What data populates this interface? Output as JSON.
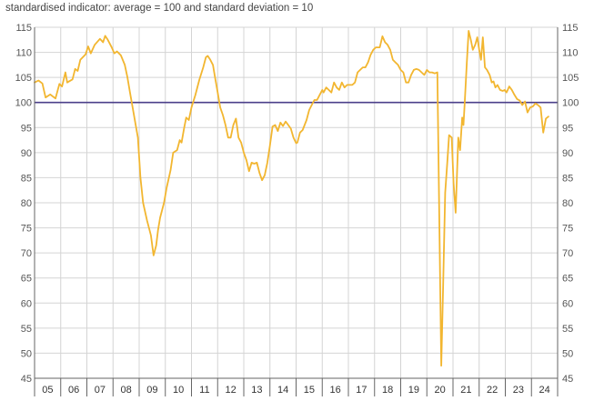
{
  "chart_data": {
    "type": "line",
    "subtitle": "standardised indicator: average = 100 and standard deviation = 10",
    "ylim": [
      45,
      115
    ],
    "yticks": [
      45,
      50,
      55,
      60,
      65,
      70,
      75,
      80,
      85,
      90,
      95,
      100,
      105,
      110,
      115
    ],
    "xticks": [
      "05",
      "06",
      "07",
      "08",
      "09",
      "10",
      "11",
      "12",
      "13",
      "14",
      "15",
      "16",
      "17",
      "18",
      "19",
      "20",
      "21",
      "22",
      "23",
      "24"
    ],
    "x_start_year": 2005,
    "reference_line": 100,
    "grid": true,
    "colors": {
      "line": "#f2b630",
      "reference": "#4b3f8a",
      "grid": "#d4d4d4",
      "axis": "#666666"
    },
    "series": [
      {
        "values": [
          [
            2005.0,
            104.0
          ],
          [
            2005.15,
            104.4
          ],
          [
            2005.3,
            103.8
          ],
          [
            2005.42,
            101.0
          ],
          [
            2005.6,
            101.6
          ],
          [
            2005.8,
            100.8
          ],
          [
            2005.95,
            103.7
          ],
          [
            2006.05,
            103.2
          ],
          [
            2006.18,
            106.0
          ],
          [
            2006.25,
            104.0
          ],
          [
            2006.45,
            104.6
          ],
          [
            2006.55,
            106.7
          ],
          [
            2006.65,
            106.3
          ],
          [
            2006.75,
            108.5
          ],
          [
            2006.95,
            109.6
          ],
          [
            2007.05,
            111.2
          ],
          [
            2007.15,
            109.8
          ],
          [
            2007.3,
            111.5
          ],
          [
            2007.5,
            112.7
          ],
          [
            2007.62,
            112.0
          ],
          [
            2007.7,
            113.3
          ],
          [
            2007.8,
            112.5
          ],
          [
            2007.95,
            111.0
          ],
          [
            2008.05,
            109.8
          ],
          [
            2008.15,
            110.2
          ],
          [
            2008.3,
            109.4
          ],
          [
            2008.45,
            107.5
          ],
          [
            2008.55,
            105.0
          ],
          [
            2008.65,
            102.0
          ],
          [
            2008.75,
            99.0
          ],
          [
            2008.85,
            96.0
          ],
          [
            2008.95,
            93.0
          ],
          [
            2009.05,
            85.0
          ],
          [
            2009.15,
            80.0
          ],
          [
            2009.3,
            76.5
          ],
          [
            2009.45,
            73.5
          ],
          [
            2009.55,
            69.5
          ],
          [
            2009.65,
            71.5
          ],
          [
            2009.72,
            74.5
          ],
          [
            2009.8,
            77.0
          ],
          [
            2009.95,
            80.0
          ],
          [
            2010.05,
            83.0
          ],
          [
            2010.2,
            86.5
          ],
          [
            2010.3,
            90.0
          ],
          [
            2010.45,
            90.5
          ],
          [
            2010.55,
            92.5
          ],
          [
            2010.62,
            92.0
          ],
          [
            2010.72,
            95.0
          ],
          [
            2010.8,
            97.0
          ],
          [
            2010.9,
            96.5
          ],
          [
            2011.0,
            99.0
          ],
          [
            2011.15,
            101.5
          ],
          [
            2011.3,
            104.5
          ],
          [
            2011.45,
            107.0
          ],
          [
            2011.55,
            109.0
          ],
          [
            2011.62,
            109.3
          ],
          [
            2011.72,
            108.5
          ],
          [
            2011.82,
            107.5
          ],
          [
            2011.9,
            105.0
          ],
          [
            2012.0,
            102.0
          ],
          [
            2012.1,
            99.0
          ],
          [
            2012.2,
            97.5
          ],
          [
            2012.3,
            95.5
          ],
          [
            2012.4,
            93.0
          ],
          [
            2012.5,
            93.0
          ],
          [
            2012.6,
            95.5
          ],
          [
            2012.7,
            96.8
          ],
          [
            2012.8,
            93.0
          ],
          [
            2012.9,
            92.0
          ],
          [
            2013.0,
            90.0
          ],
          [
            2013.1,
            88.5
          ],
          [
            2013.2,
            86.3
          ],
          [
            2013.3,
            88.0
          ],
          [
            2013.4,
            87.8
          ],
          [
            2013.5,
            88.0
          ],
          [
            2013.6,
            86.0
          ],
          [
            2013.7,
            84.5
          ],
          [
            2013.8,
            85.5
          ],
          [
            2013.9,
            88.0
          ],
          [
            2014.0,
            91.5
          ],
          [
            2014.1,
            95.2
          ],
          [
            2014.2,
            95.5
          ],
          [
            2014.3,
            94.3
          ],
          [
            2014.4,
            96.0
          ],
          [
            2014.5,
            95.3
          ],
          [
            2014.6,
            96.2
          ],
          [
            2014.7,
            95.5
          ],
          [
            2014.8,
            94.8
          ],
          [
            2014.9,
            93.0
          ],
          [
            2015.0,
            91.9
          ],
          [
            2015.05,
            92.0
          ],
          [
            2015.15,
            94.0
          ],
          [
            2015.25,
            94.5
          ],
          [
            2015.4,
            96.5
          ],
          [
            2015.5,
            98.5
          ],
          [
            2015.6,
            99.5
          ],
          [
            2015.7,
            100.5
          ],
          [
            2015.8,
            100.5
          ],
          [
            2015.9,
            101.5
          ],
          [
            2016.0,
            102.5
          ],
          [
            2016.05,
            102.0
          ],
          [
            2016.15,
            103.0
          ],
          [
            2016.25,
            102.5
          ],
          [
            2016.35,
            102.0
          ],
          [
            2016.45,
            104.0
          ],
          [
            2016.55,
            103.0
          ],
          [
            2016.65,
            102.5
          ],
          [
            2016.75,
            104.0
          ],
          [
            2016.85,
            103.0
          ],
          [
            2016.95,
            103.5
          ],
          [
            2017.05,
            103.5
          ],
          [
            2017.15,
            103.5
          ],
          [
            2017.25,
            104.0
          ],
          [
            2017.35,
            106.0
          ],
          [
            2017.45,
            106.5
          ],
          [
            2017.55,
            107.0
          ],
          [
            2017.65,
            107.0
          ],
          [
            2017.75,
            108.0
          ],
          [
            2017.85,
            109.5
          ],
          [
            2017.95,
            110.5
          ],
          [
            2018.05,
            111.0
          ],
          [
            2018.2,
            111.0
          ],
          [
            2018.3,
            113.2
          ],
          [
            2018.4,
            112.0
          ],
          [
            2018.5,
            111.5
          ],
          [
            2018.6,
            110.5
          ],
          [
            2018.7,
            108.5
          ],
          [
            2018.8,
            108.0
          ],
          [
            2018.9,
            107.5
          ],
          [
            2019.0,
            106.5
          ],
          [
            2019.1,
            106.0
          ],
          [
            2019.2,
            104.0
          ],
          [
            2019.3,
            104.0
          ],
          [
            2019.4,
            105.5
          ],
          [
            2019.5,
            106.5
          ],
          [
            2019.6,
            106.7
          ],
          [
            2019.7,
            106.5
          ],
          [
            2019.8,
            106.0
          ],
          [
            2019.9,
            105.5
          ],
          [
            2020.0,
            106.5
          ],
          [
            2020.1,
            106.0
          ],
          [
            2020.2,
            106.0
          ],
          [
            2020.3,
            105.8
          ],
          [
            2020.4,
            106.0
          ],
          [
            2020.55,
            47.5
          ],
          [
            2020.62,
            63.0
          ],
          [
            2020.7,
            82.0
          ],
          [
            2020.78,
            88.0
          ],
          [
            2020.85,
            93.5
          ],
          [
            2020.95,
            93.0
          ],
          [
            2021.02,
            84.0
          ],
          [
            2021.1,
            78.0
          ],
          [
            2021.2,
            93.0
          ],
          [
            2021.27,
            90.5
          ],
          [
            2021.35,
            97.0
          ],
          [
            2021.4,
            95.5
          ],
          [
            2021.45,
            100.0
          ],
          [
            2021.53,
            108.0
          ],
          [
            2021.6,
            114.3
          ],
          [
            2021.68,
            112.5
          ],
          [
            2021.76,
            110.5
          ],
          [
            2021.85,
            111.5
          ],
          [
            2021.93,
            113.0
          ],
          [
            2022.0,
            110.5
          ],
          [
            2022.07,
            108.5
          ],
          [
            2022.14,
            113.0
          ],
          [
            2022.22,
            107.0
          ],
          [
            2022.3,
            106.5
          ],
          [
            2022.4,
            105.5
          ],
          [
            2022.48,
            104.0
          ],
          [
            2022.55,
            104.2
          ],
          [
            2022.62,
            103.0
          ],
          [
            2022.7,
            103.5
          ],
          [
            2022.8,
            102.5
          ],
          [
            2022.9,
            102.3
          ],
          [
            2022.98,
            102.5
          ],
          [
            2023.05,
            102.0
          ],
          [
            2023.15,
            103.2
          ],
          [
            2023.25,
            102.5
          ],
          [
            2023.35,
            101.5
          ],
          [
            2023.45,
            100.7
          ],
          [
            2023.55,
            100.4
          ],
          [
            2023.65,
            99.5
          ],
          [
            2023.75,
            100.2
          ],
          [
            2023.85,
            98.0
          ],
          [
            2023.95,
            99.0
          ],
          [
            2024.05,
            99.2
          ],
          [
            2024.15,
            99.8
          ],
          [
            2024.25,
            99.5
          ],
          [
            2024.35,
            99.0
          ],
          [
            2024.45,
            94.0
          ],
          [
            2024.55,
            96.8
          ],
          [
            2024.65,
            97.2
          ]
        ]
      }
    ]
  }
}
